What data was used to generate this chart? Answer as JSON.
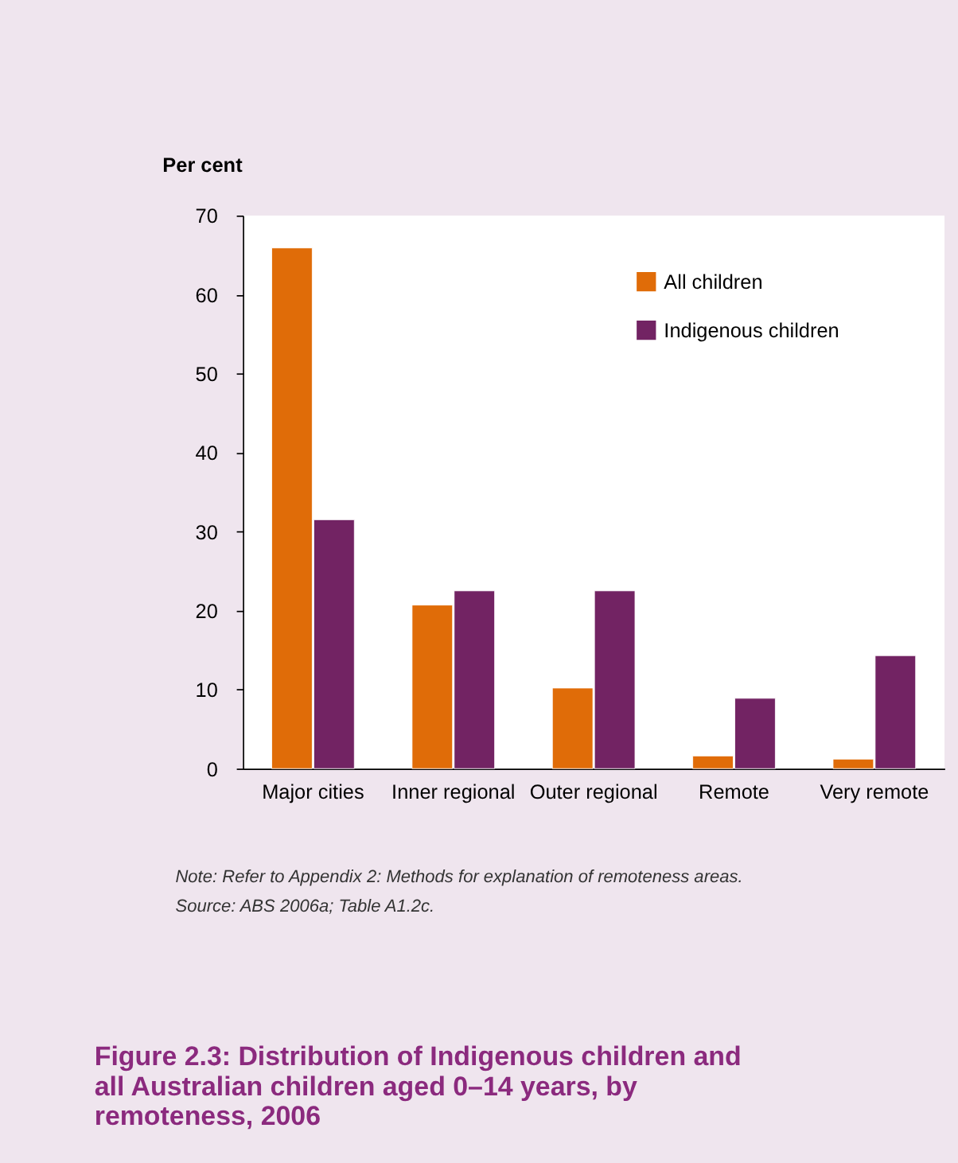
{
  "chart_data": {
    "type": "bar",
    "title": "Figure 2.3: Distribution of Indigenous children and all Australian children aged 0–14 years, by remoteness, 2006",
    "ylabel": "Per cent",
    "categories": [
      "Major cities",
      "Inner regional",
      "Outer regional",
      "Remote",
      "Very remote"
    ],
    "series": [
      {
        "name": "All children",
        "color": "#e06c08",
        "values": [
          65.9,
          20.7,
          10.2,
          1.6,
          1.2
        ]
      },
      {
        "name": "Indigenous children",
        "color": "#722363",
        "values": [
          31.5,
          22.5,
          22.5,
          8.9,
          14.3
        ]
      }
    ],
    "ylim": [
      0,
      70
    ],
    "yticks": [
      0,
      10,
      20,
      30,
      40,
      50,
      60,
      70
    ],
    "grid": false,
    "legend": "top right",
    "annotations": [
      "Note: Refer to Appendix 2: Methods for explanation of remoteness areas.",
      "Source: ABS 2006a; Table A1.2c."
    ]
  }
}
